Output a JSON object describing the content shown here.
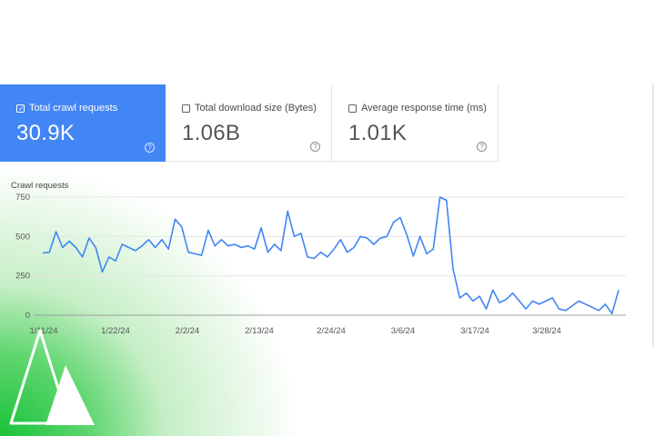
{
  "cards": [
    {
      "label": "Total crawl requests",
      "value": "30.9K",
      "selected": true
    },
    {
      "label": "Total download size (Bytes)",
      "value": "1.06B",
      "selected": false
    },
    {
      "label": "Average response time (ms)",
      "value": "1.01K",
      "selected": false
    }
  ],
  "icons": {
    "help": "help-circle-icon",
    "checkbox": "checkbox-icon",
    "logo": "pine-trees-logo"
  },
  "colors": {
    "accent": "#4285f4",
    "line": "#4285f4",
    "green": "#19c23a"
  },
  "chart_data": {
    "type": "line",
    "ylabel": "Crawl requests",
    "yticks": [
      "750",
      "500",
      "250",
      "0"
    ],
    "ylim": [
      0,
      750
    ],
    "xticks": [
      "1/11/24",
      "1/22/24",
      "2/2/24",
      "2/13/24",
      "2/24/24",
      "3/6/24",
      "3/17/24",
      "3/28/24"
    ],
    "series": [
      {
        "values": [
          395,
          400,
          530,
          430,
          470,
          430,
          370,
          490,
          430,
          275,
          370,
          345,
          450,
          430,
          410,
          440,
          480,
          430,
          480,
          420,
          610,
          560,
          400,
          390,
          380,
          540,
          440,
          480,
          440,
          450,
          430,
          440,
          420,
          555,
          400,
          450,
          410,
          660,
          500,
          520,
          370,
          360,
          400,
          370,
          420,
          480,
          400,
          430,
          500,
          490,
          450,
          490,
          500,
          590,
          620,
          510,
          375,
          500,
          390,
          420,
          750,
          730,
          290,
          110,
          140,
          90,
          120,
          40,
          160,
          80,
          100,
          140,
          90,
          40,
          90,
          70,
          90,
          110,
          40,
          30,
          60,
          90,
          70,
          50,
          30,
          70,
          10,
          160
        ]
      }
    ],
    "grid": true
  }
}
